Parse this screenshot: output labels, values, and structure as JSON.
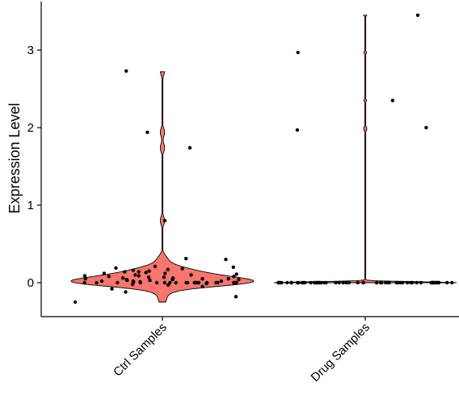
{
  "chart_data": {
    "type": "violin",
    "ylabel": "Expression Level",
    "xlabel": "",
    "ylim": [
      -0.45,
      3.55
    ],
    "yticks": [
      0,
      1,
      2,
      3
    ],
    "grid": false,
    "legend": "none",
    "colors": {
      "fill": "#F8766D",
      "outline": "#000000",
      "points": "#000000"
    },
    "categories": [
      "Ctrl Samples",
      "Drug Samples"
    ],
    "groups": [
      {
        "name": "Ctrl Samples",
        "violin_max_width_fraction": 1.0,
        "violin_range": [
          -0.25,
          2.72
        ],
        "points": [
          -0.25,
          -0.18,
          -0.12,
          -0.08,
          -0.05,
          -0.03,
          -0.02,
          -0.01,
          0.0,
          0.0,
          0.0,
          0.0,
          0.0,
          0.0,
          0.0,
          0.0,
          0.0,
          0.0,
          0.0,
          0.0,
          0.0,
          0.0,
          0.0,
          0.0,
          0.0,
          0.0,
          0.0,
          0.0,
          0.0,
          0.0,
          0.01,
          0.01,
          0.02,
          0.02,
          0.02,
          0.03,
          0.03,
          0.04,
          0.04,
          0.04,
          0.05,
          0.05,
          0.05,
          0.06,
          0.06,
          0.07,
          0.07,
          0.08,
          0.08,
          0.09,
          0.09,
          0.1,
          0.1,
          0.11,
          0.12,
          0.12,
          0.13,
          0.14,
          0.14,
          0.15,
          0.16,
          0.17,
          0.18,
          0.19,
          0.2,
          0.21,
          0.3,
          0.31,
          0.8,
          1.74,
          1.94,
          2.73
        ]
      },
      {
        "name": "Drug Samples",
        "violin_max_width_fraction": 1.0,
        "violin_range": [
          0.0,
          3.45
        ],
        "points": [
          0,
          0,
          0,
          0,
          0,
          0,
          0,
          0,
          0,
          0,
          0,
          0,
          0,
          0,
          0,
          0,
          0,
          0,
          0,
          0,
          0,
          0,
          0,
          0,
          0,
          0,
          0,
          0,
          0,
          0,
          0,
          0,
          0,
          0,
          0,
          0,
          0,
          0,
          0,
          0,
          0,
          0,
          0,
          0,
          0,
          0,
          0,
          0,
          0,
          0,
          0,
          0,
          0,
          0,
          0,
          0,
          0,
          0,
          0,
          0,
          1.97,
          2.0,
          2.35,
          2.97,
          3.45
        ]
      }
    ]
  }
}
